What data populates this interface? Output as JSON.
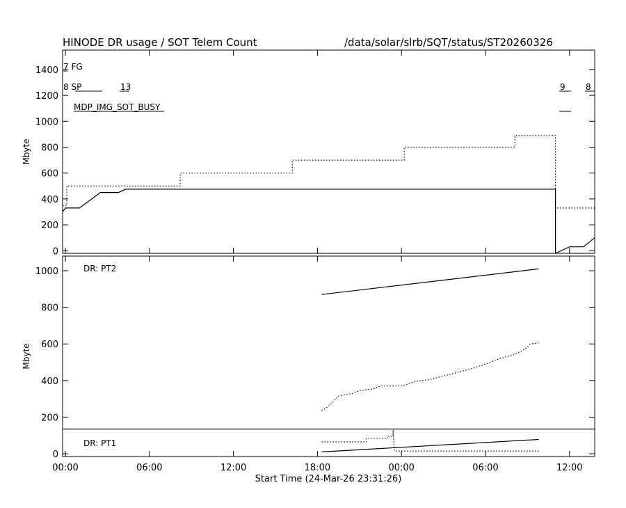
{
  "header": {
    "title": "HINODE DR usage / SOT Telem Count",
    "path": "/data/solar/slrb/SQT/status/ST20260326"
  },
  "xaxis": {
    "label": "Start Time (24-Mar-26 23:31:26)",
    "range_hours": [
      -0.2,
      37.8
    ],
    "tick_hours": [
      0,
      6,
      12,
      18,
      24,
      30,
      36
    ],
    "tick_labels": [
      "00:00",
      "06:00",
      "12:00",
      "18:00",
      "00:00",
      "06:00",
      "12:00"
    ]
  },
  "top_panel": {
    "ylabel": "Mbyte",
    "legend": {
      "fg": "7 FG",
      "sp_left": "8 SP",
      "sp_mid": "13",
      "busy": "MDP_IMG_SOT_BUSY",
      "right_9": "9",
      "right_8": "8"
    }
  },
  "bottom_panel": {
    "ylabel": "Mbyte",
    "pt2_label": "DR: PT2",
    "pt1_label": "DR: PT1"
  },
  "chart_data": [
    {
      "type": "line",
      "panel": "top",
      "title": "HINODE DR usage / SOT Telem Count",
      "xlabel": "Start Time (24-Mar-26 23:31:26)",
      "ylabel": "Mbyte",
      "ylim": [
        -20,
        1550
      ],
      "yticks": [
        0,
        200,
        400,
        600,
        800,
        1000,
        1200,
        1400
      ],
      "series": [
        {
          "style": "solid",
          "points": [
            [
              -0.2,
              300
            ],
            [
              0.0,
              330
            ],
            [
              1.0,
              330
            ],
            [
              2.5,
              450
            ],
            [
              3.8,
              450
            ],
            [
              4.3,
              475
            ],
            [
              35.0,
              475
            ],
            [
              35.0,
              -20
            ],
            [
              36.0,
              30
            ],
            [
              37.0,
              30
            ],
            [
              37.8,
              100
            ]
          ]
        },
        {
          "style": "dotted",
          "points": [
            [
              -0.2,
              350
            ],
            [
              0.1,
              350
            ],
            [
              0.1,
              500
            ],
            [
              8.2,
              500
            ],
            [
              8.2,
              600
            ],
            [
              16.2,
              600
            ],
            [
              16.2,
              700
            ],
            [
              24.2,
              700
            ],
            [
              24.2,
              800
            ],
            [
              32.1,
              800
            ],
            [
              32.1,
              890
            ],
            [
              35.0,
              890
            ],
            [
              35.0,
              330
            ],
            [
              37.8,
              330
            ]
          ]
        }
      ]
    },
    {
      "type": "line",
      "panel": "bottom",
      "ylabel": "Mbyte",
      "ylim": [
        -15,
        1080
      ],
      "yticks": [
        0,
        200,
        400,
        600,
        800,
        1000
      ],
      "series": [
        {
          "name": "DR: PT2",
          "style": "solid",
          "points": [
            [
              18.3,
              870
            ],
            [
              33.8,
              1010
            ]
          ]
        },
        {
          "name": "DR: PT2",
          "style": "dotted",
          "points": [
            [
              18.3,
              235
            ],
            [
              18.8,
              260
            ],
            [
              19.5,
              315
            ],
            [
              20.5,
              330
            ],
            [
              21.0,
              345
            ],
            [
              22.0,
              355
            ],
            [
              22.5,
              370
            ],
            [
              24.0,
              370
            ],
            [
              25.0,
              395
            ],
            [
              26.0,
              405
            ],
            [
              27.0,
              425
            ],
            [
              28.0,
              445
            ],
            [
              29.0,
              465
            ],
            [
              30.0,
              490
            ],
            [
              31.0,
              520
            ],
            [
              32.0,
              540
            ],
            [
              32.8,
              570
            ],
            [
              33.2,
              600
            ],
            [
              33.8,
              605
            ]
          ]
        },
        {
          "name": "DR: PT1",
          "style": "solid",
          "points": [
            [
              18.3,
              10
            ],
            [
              33.8,
              78
            ]
          ]
        },
        {
          "name": "DR: PT1",
          "style": "dotted",
          "points": [
            [
              18.3,
              65
            ],
            [
              21.5,
              65
            ],
            [
              21.5,
              85
            ],
            [
              23.0,
              85
            ],
            [
              23.0,
              95
            ],
            [
              23.4,
              95
            ],
            [
              23.4,
              130
            ],
            [
              23.5,
              15
            ],
            [
              33.8,
              15
            ]
          ]
        },
        {
          "style": "solid",
          "points": [
            [
              -0.2,
              135
            ],
            [
              37.8,
              135
            ]
          ]
        }
      ]
    }
  ]
}
